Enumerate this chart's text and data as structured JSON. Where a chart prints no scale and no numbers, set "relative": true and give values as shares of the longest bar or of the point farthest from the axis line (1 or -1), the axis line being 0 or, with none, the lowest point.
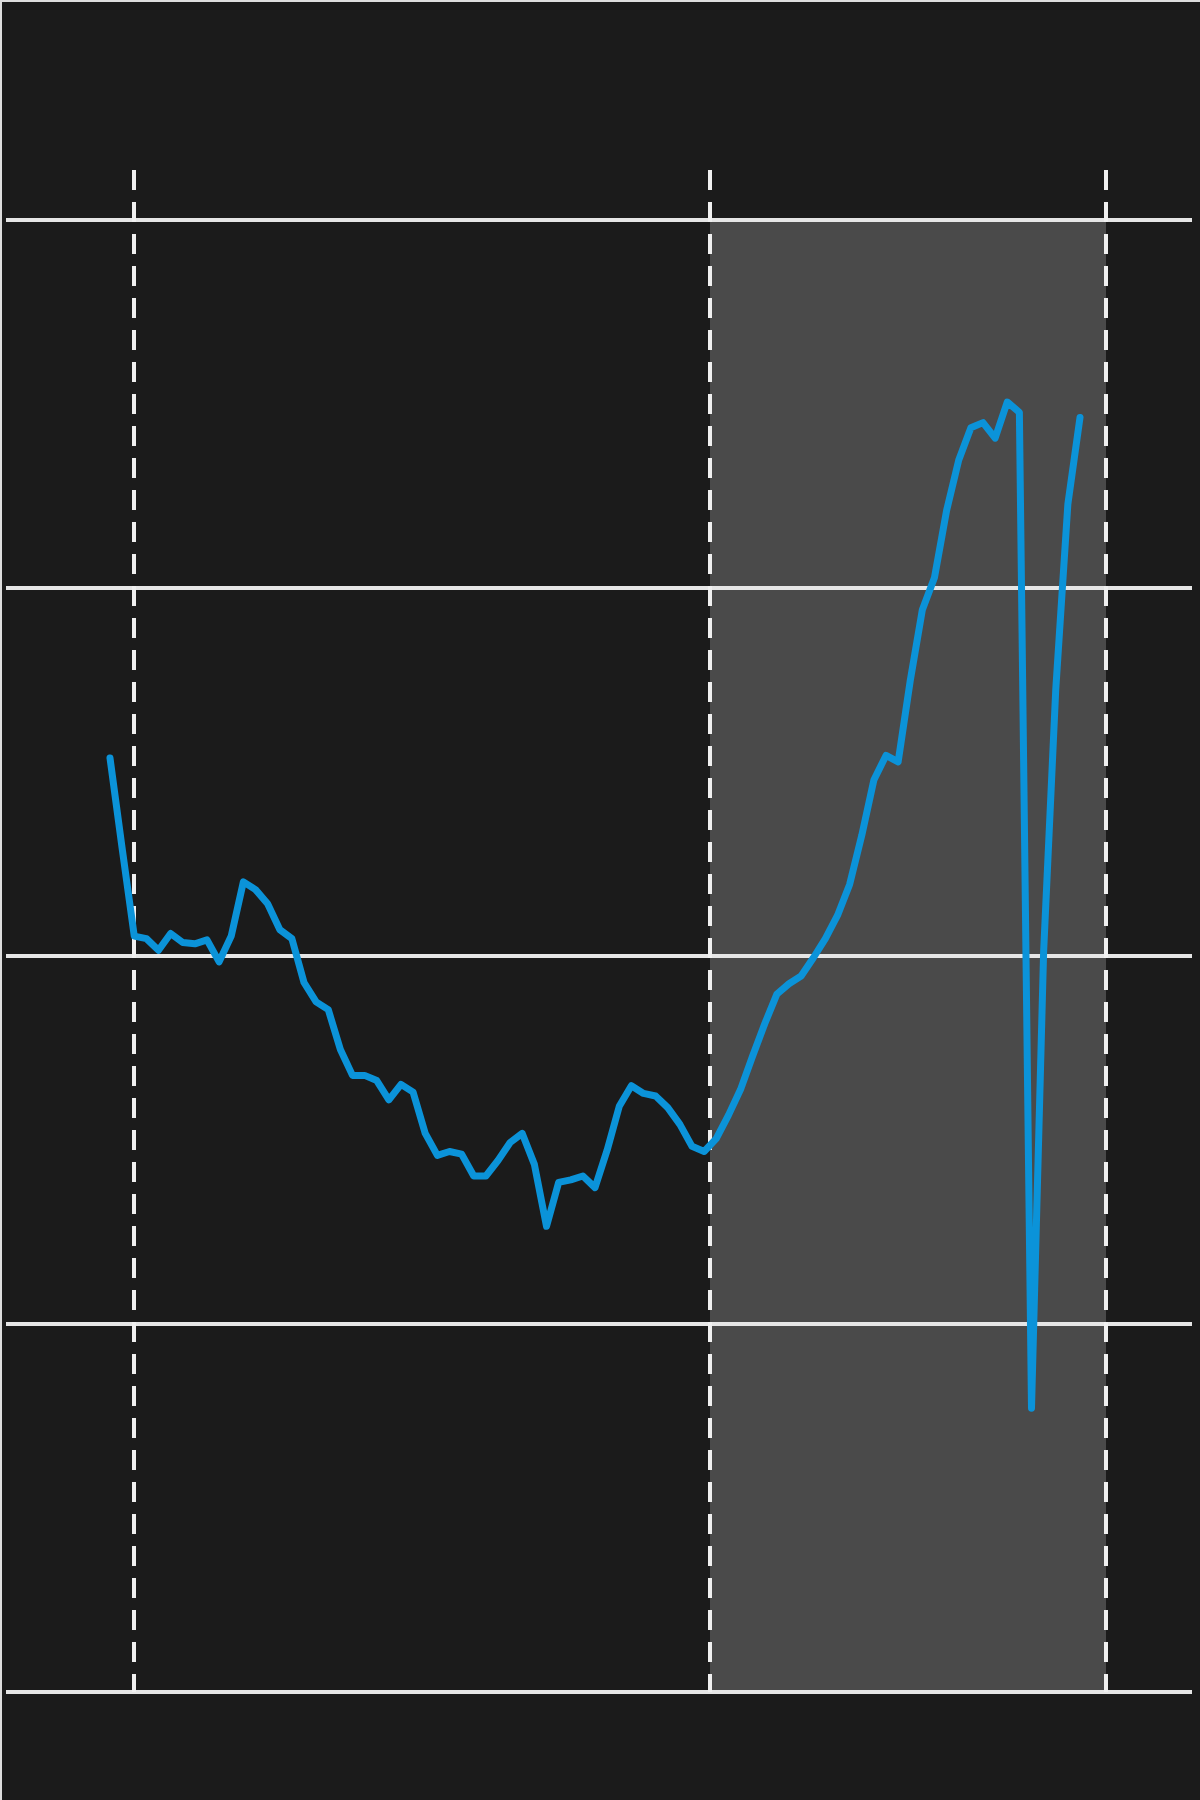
{
  "chart_data": {
    "type": "line",
    "relative": true,
    "grid": "y",
    "categories": [
      null,
      null,
      null,
      null,
      null,
      null,
      null,
      null,
      null,
      null,
      null,
      null,
      null,
      null,
      null,
      null,
      null,
      null,
      null,
      null,
      null,
      null,
      null,
      null,
      null,
      null,
      null,
      null,
      null,
      null,
      null,
      null,
      null,
      null,
      null,
      null,
      null,
      null,
      null,
      null,
      null,
      null,
      null,
      null,
      null,
      null,
      null,
      null,
      null,
      null,
      null,
      null,
      null,
      null,
      null,
      null,
      null,
      null,
      null,
      null,
      null,
      null,
      null,
      null,
      null,
      null,
      null,
      null,
      null,
      null,
      null,
      null,
      null,
      null,
      null,
      null,
      null,
      null,
      null,
      null,
      null
    ],
    "series": [
      {
        "color": "#0b93d9",
        "values": [
          0.724,
          0.654,
          0.586,
          0.584,
          0.575,
          0.588,
          0.581,
          0.58,
          0.583,
          0.566,
          0.586,
          0.628,
          0.622,
          0.611,
          0.591,
          0.584,
          0.55,
          0.535,
          0.529,
          0.498,
          0.478,
          0.478,
          0.474,
          0.459,
          0.471,
          0.465,
          0.433,
          0.416,
          0.419,
          0.417,
          0.4,
          0.4,
          0.412,
          0.426,
          0.433,
          0.409,
          0.361,
          0.395,
          0.397,
          0.4,
          0.391,
          0.42,
          0.454,
          0.47,
          0.464,
          0.462,
          0.453,
          0.44,
          0.423,
          0.419,
          0.429,
          0.447,
          0.467,
          0.493,
          0.518,
          0.541,
          0.549,
          0.555,
          0.569,
          0.584,
          0.602,
          0.626,
          0.664,
          0.707,
          0.726,
          0.721,
          0.784,
          0.839,
          0.864,
          0.916,
          0.955,
          0.98,
          0.984,
          0.972,
          1.0,
          0.992,
          0.22,
          0.574,
          0.777,
          0.921,
          0.988
        ]
      }
    ],
    "line_style": "solid"
  }
}
